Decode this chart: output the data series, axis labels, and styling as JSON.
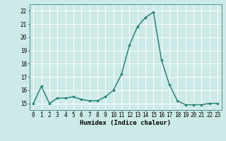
{
  "x": [
    0,
    1,
    2,
    3,
    4,
    5,
    6,
    7,
    8,
    9,
    10,
    11,
    12,
    13,
    14,
    15,
    16,
    17,
    18,
    19,
    20,
    21,
    22,
    23
  ],
  "y": [
    15.0,
    16.3,
    15.0,
    15.4,
    15.4,
    15.5,
    15.3,
    15.2,
    15.2,
    15.5,
    16.0,
    17.2,
    19.4,
    20.8,
    21.5,
    21.9,
    18.3,
    16.4,
    15.2,
    14.9,
    14.9,
    14.9,
    15.0,
    15.0
  ],
  "line_color": "#1a7a6e",
  "marker": "D",
  "marker_size": 1.8,
  "bg_color": "#cceae7",
  "grid_color": "#ffffff",
  "xlabel": "Humidex (Indice chaleur)",
  "ylim": [
    14.5,
    22.5
  ],
  "yticks": [
    15,
    16,
    17,
    18,
    19,
    20,
    21,
    22
  ],
  "xticks": [
    0,
    1,
    2,
    3,
    4,
    5,
    6,
    7,
    8,
    9,
    10,
    11,
    12,
    13,
    14,
    15,
    16,
    17,
    18,
    19,
    20,
    21,
    22,
    23
  ],
  "xlabel_fontsize": 6.5,
  "tick_fontsize": 5.5,
  "line_width": 1.0
}
